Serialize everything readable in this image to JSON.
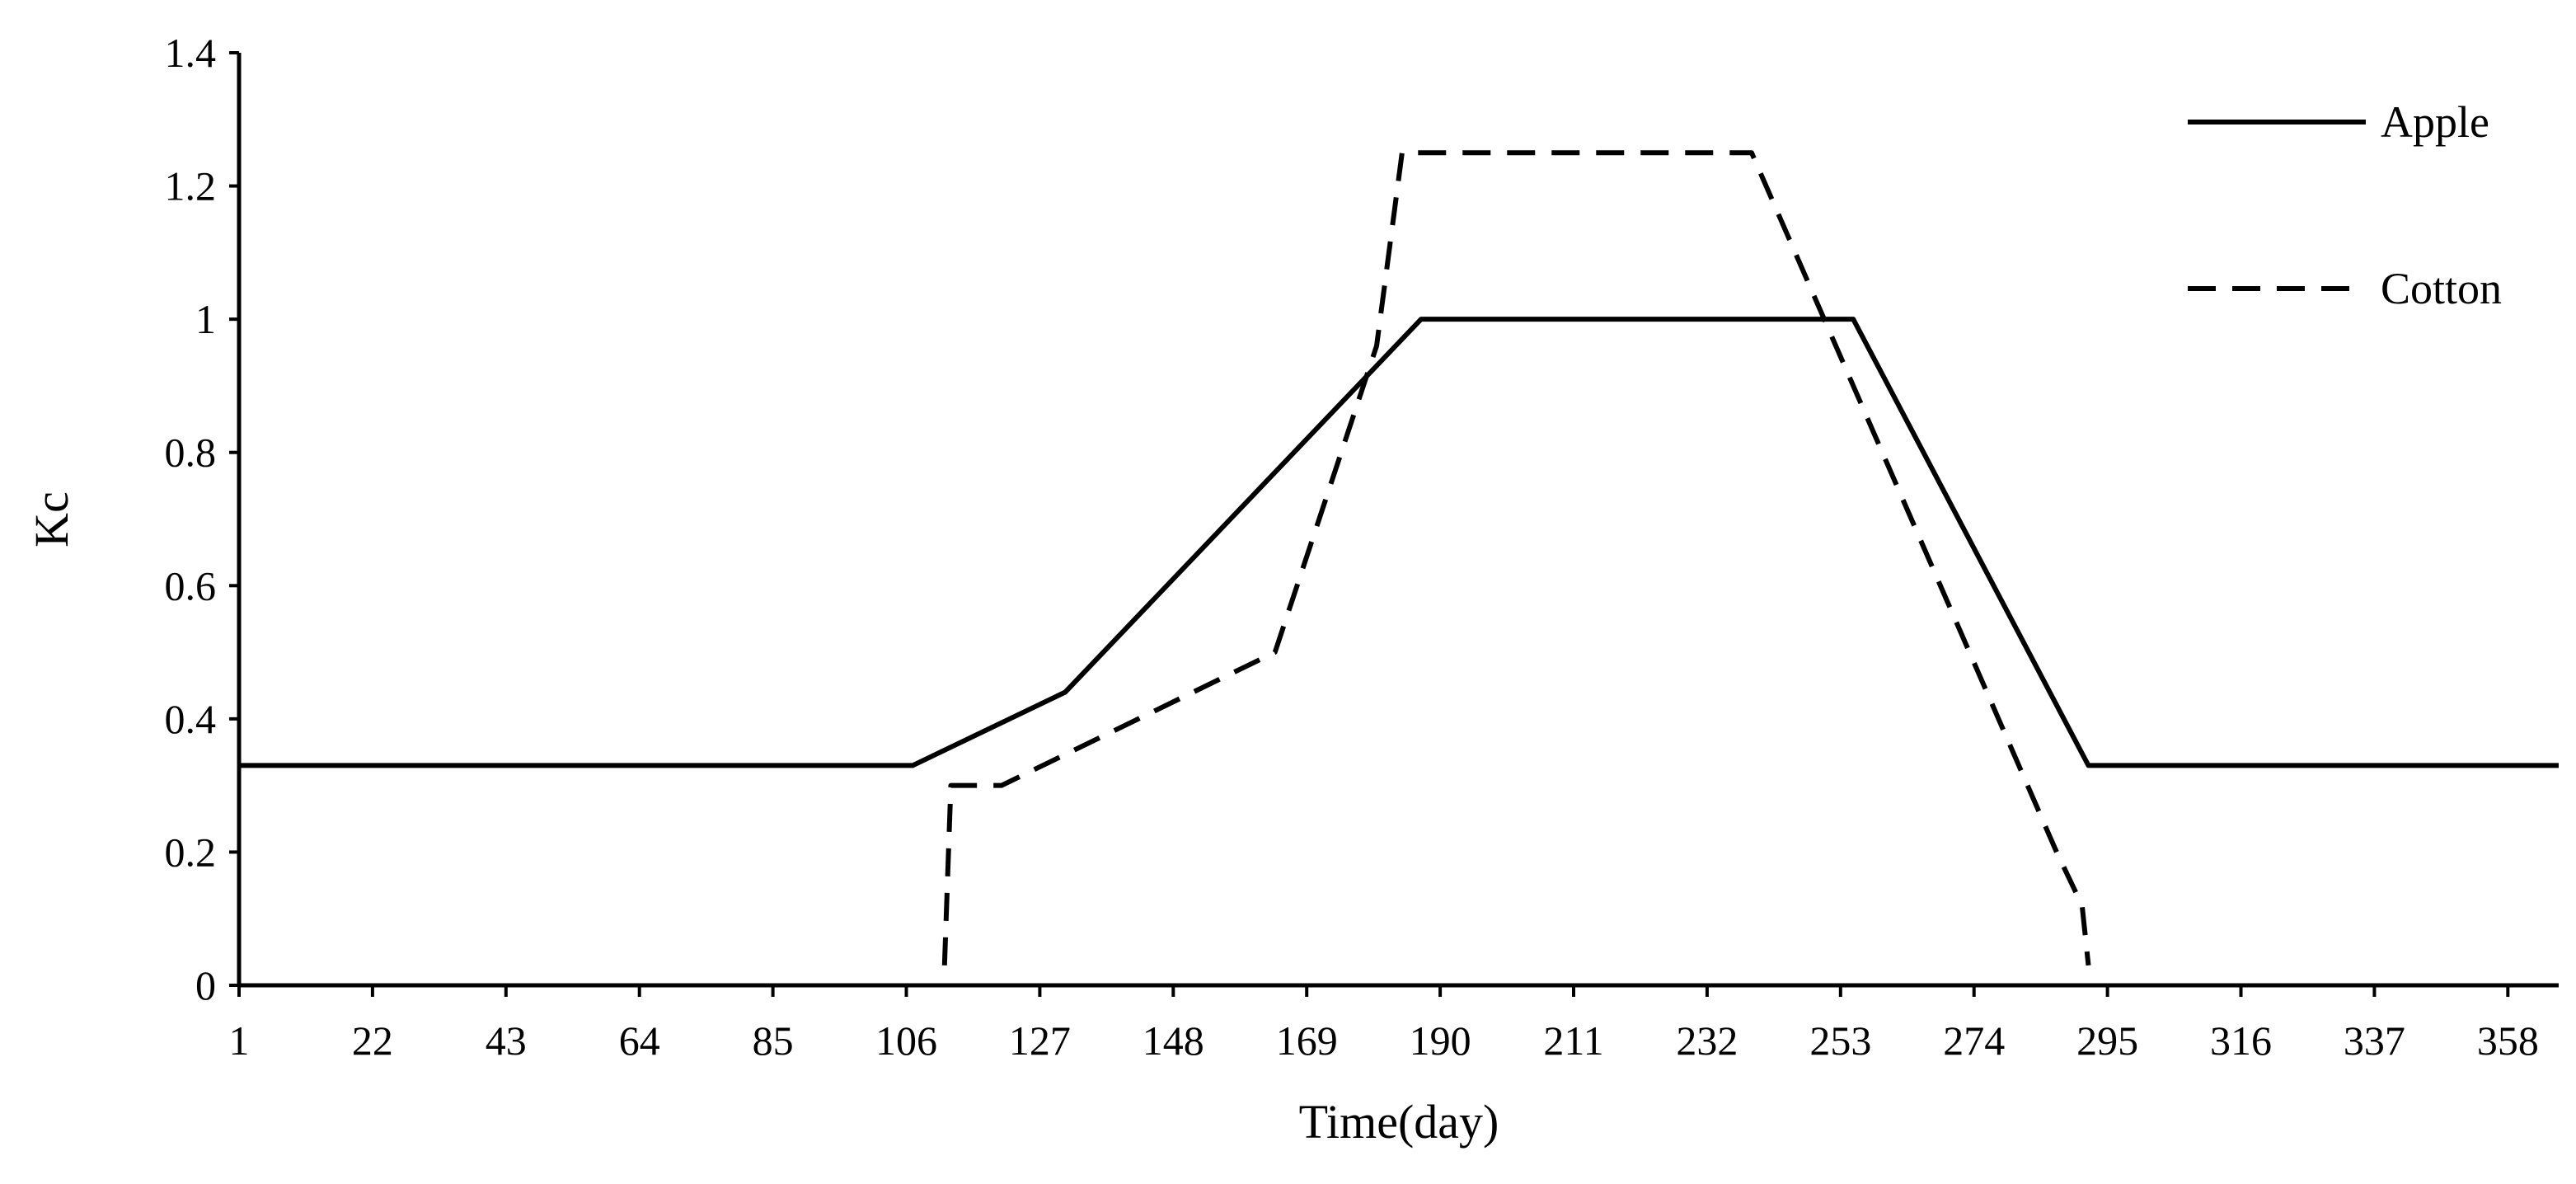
{
  "chart_data": {
    "type": "line",
    "title": "",
    "xlabel": "Time(day)",
    "ylabel": "Kc",
    "xlim": [
      1,
      366
    ],
    "ylim": [
      0,
      1.4
    ],
    "x_ticks": [
      "1",
      "22",
      "43",
      "64",
      "85",
      "106",
      "127",
      "148",
      "169",
      "190",
      "211",
      "232",
      "253",
      "274",
      "295",
      "316",
      "337",
      "358"
    ],
    "y_ticks": [
      "0",
      "0.2",
      "0.4",
      "0.6",
      "0.8",
      "1",
      "1.2",
      "1.4"
    ],
    "grid": false,
    "legend_position": "top-right",
    "series": [
      {
        "name": "Apple",
        "style": "solid",
        "color": "#000000",
        "points": [
          [
            1,
            0.33
          ],
          [
            107,
            0.33
          ],
          [
            131,
            0.44
          ],
          [
            187,
            1.0
          ],
          [
            255,
            1.0
          ],
          [
            292,
            0.33
          ],
          [
            366,
            0.33
          ]
        ]
      },
      {
        "name": "Cotton",
        "style": "dashed",
        "color": "#000000",
        "points": [
          [
            112,
            0.03
          ],
          [
            113,
            0.3
          ],
          [
            121,
            0.3
          ],
          [
            164,
            0.5
          ],
          [
            180,
            0.96
          ],
          [
            184,
            1.25
          ],
          [
            239,
            1.25
          ],
          [
            287,
            0.2
          ],
          [
            291,
            0.12
          ],
          [
            292,
            0.03
          ]
        ]
      }
    ]
  }
}
